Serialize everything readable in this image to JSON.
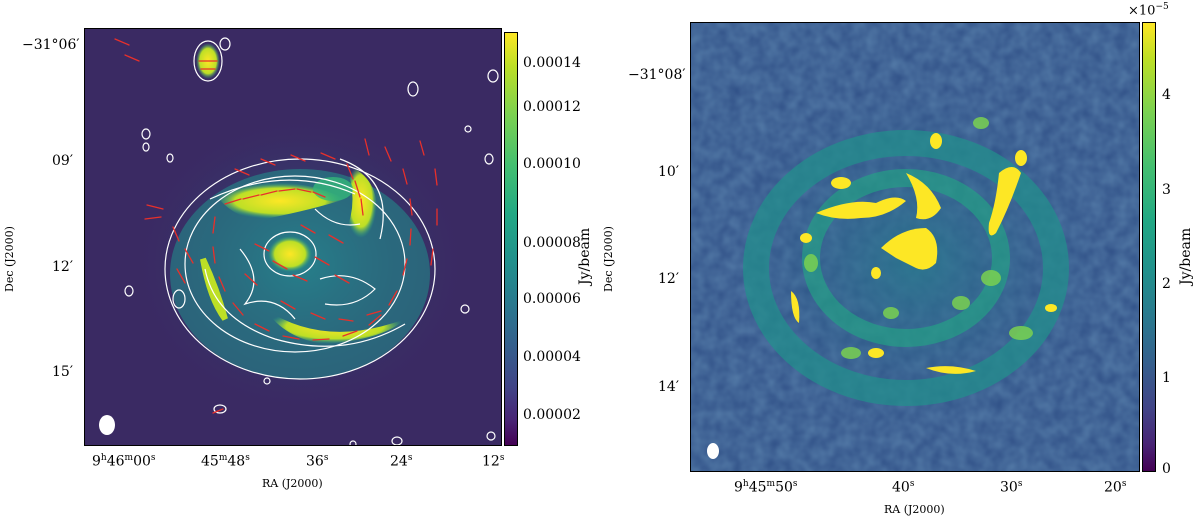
{
  "figure": {
    "left_panel": {
      "ylabel": "Dec (J2000)",
      "xlabel": "RA (J2000)",
      "yticks": [
        "−31°06′",
        "09′",
        "12′",
        "15′"
      ],
      "xticks": [
        {
          "h": "9",
          "hs": "h",
          "m": "46",
          "ms": "m",
          "s": "00",
          "ss": "s"
        },
        {
          "h": "",
          "hs": "",
          "m": "45",
          "ms": "m",
          "s": "48",
          "ss": "s"
        },
        {
          "h": "",
          "hs": "",
          "m": "",
          "ms": "",
          "s": "36",
          "ss": "s"
        },
        {
          "h": "",
          "hs": "",
          "m": "",
          "ms": "",
          "s": "24",
          "ss": "s"
        },
        {
          "h": "",
          "hs": "",
          "m": "",
          "ms": "",
          "s": "12",
          "ss": "s"
        }
      ],
      "colorbar_label": "Jy/beam",
      "colorbar_ticks": [
        "0.00014",
        "0.00012",
        "0.00010",
        "0.00008",
        "0.00006",
        "0.00004",
        "0.00002"
      ]
    },
    "right_panel": {
      "ylabel": "Dec (J2000)",
      "xlabel": "RA (J2000)",
      "yticks": [
        "−31°08′",
        "10′",
        "12′",
        "14′"
      ],
      "xticks": [
        {
          "h": "9",
          "hs": "h",
          "m": "45",
          "ms": "m",
          "s": "50",
          "ss": "s"
        },
        {
          "h": "",
          "hs": "",
          "m": "",
          "ms": "",
          "s": "40",
          "ss": "s"
        },
        {
          "h": "",
          "hs": "",
          "m": "",
          "ms": "",
          "s": "30",
          "ss": "s"
        },
        {
          "h": "",
          "hs": "",
          "m": "",
          "ms": "",
          "s": "20",
          "ss": "s"
        }
      ],
      "colorbar_label": "Jy/beam",
      "colorbar_ticks": [
        "4",
        "3",
        "2",
        "1",
        "0"
      ],
      "colorbar_multiplier": "×10",
      "colorbar_exponent": "−5"
    },
    "colors": {
      "background": "#3b1f5e",
      "mid": "#26828e",
      "bright": "#fde725",
      "contour": "#ffffff",
      "vector": "#e8302b"
    }
  }
}
